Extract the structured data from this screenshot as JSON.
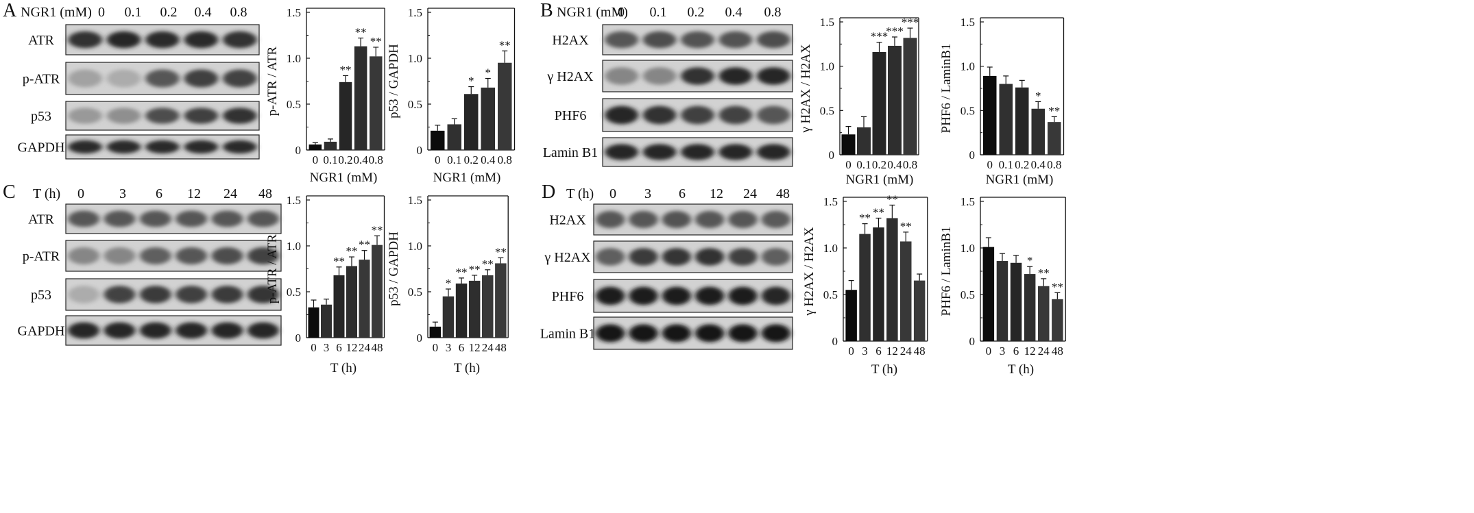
{
  "panels": [
    {
      "letter": "A",
      "condition_label": "NGR1 (mM)",
      "lane_labels": [
        "0",
        "0.1",
        "0.2",
        "0.4",
        "0.8"
      ],
      "blots": [
        {
          "label": "ATR",
          "intensity": [
            0.8,
            0.85,
            0.82,
            0.82,
            0.8
          ]
        },
        {
          "label": "p-ATR",
          "intensity": [
            0.2,
            0.15,
            0.6,
            0.72,
            0.7
          ]
        },
        {
          "label": "p53",
          "intensity": [
            0.25,
            0.3,
            0.65,
            0.72,
            0.8
          ]
        },
        {
          "label": "GAPDH",
          "intensity": [
            0.82,
            0.82,
            0.82,
            0.82,
            0.82
          ]
        }
      ]
    },
    {
      "letter": "B",
      "condition_label": "NGR1 (mM)",
      "lane_labels": [
        "0",
        "0.1",
        "0.2",
        "0.4",
        "0.8"
      ],
      "blots": [
        {
          "label": "H2AX",
          "intensity": [
            0.6,
            0.65,
            0.62,
            0.62,
            0.65
          ]
        },
        {
          "label": "γ H2AX",
          "intensity": [
            0.35,
            0.35,
            0.8,
            0.85,
            0.85
          ]
        },
        {
          "label": "PHF6",
          "intensity": [
            0.85,
            0.8,
            0.72,
            0.7,
            0.6
          ]
        },
        {
          "label": "Lamin B1",
          "intensity": [
            0.85,
            0.85,
            0.85,
            0.85,
            0.85
          ]
        }
      ]
    },
    {
      "letter": "C",
      "condition_label": "T (h)",
      "lane_labels": [
        "0",
        "3",
        "6",
        "12",
        "24",
        "48"
      ],
      "blots": [
        {
          "label": "ATR",
          "intensity": [
            0.6,
            0.6,
            0.6,
            0.6,
            0.6,
            0.6
          ]
        },
        {
          "label": "p-ATR",
          "intensity": [
            0.35,
            0.35,
            0.55,
            0.6,
            0.65,
            0.7
          ]
        },
        {
          "label": "p53",
          "intensity": [
            0.15,
            0.7,
            0.75,
            0.72,
            0.75,
            0.78
          ]
        },
        {
          "label": "GAPDH",
          "intensity": [
            0.85,
            0.85,
            0.85,
            0.85,
            0.85,
            0.85
          ]
        }
      ]
    },
    {
      "letter": "D",
      "condition_label": "T (h)",
      "lane_labels": [
        "0",
        "3",
        "6",
        "12",
        "24",
        "48"
      ],
      "blots": [
        {
          "label": "H2AX",
          "intensity": [
            0.6,
            0.6,
            0.62,
            0.6,
            0.6,
            0.58
          ]
        },
        {
          "label": "γ H2AX",
          "intensity": [
            0.55,
            0.75,
            0.78,
            0.8,
            0.72,
            0.55
          ]
        },
        {
          "label": "PHF6",
          "intensity": [
            0.9,
            0.9,
            0.9,
            0.9,
            0.9,
            0.85
          ]
        },
        {
          "label": "Lamin B1",
          "intensity": [
            0.92,
            0.92,
            0.92,
            0.92,
            0.92,
            0.92
          ]
        }
      ]
    }
  ],
  "chart_data": [
    {
      "type": "bar",
      "panel": "A",
      "categories": [
        "0",
        "0.1",
        "0.2",
        "0.4",
        "0.8"
      ],
      "values": [
        0.06,
        0.09,
        0.74,
        1.13,
        1.02
      ],
      "errors": [
        0.02,
        0.03,
        0.07,
        0.09,
        0.1
      ],
      "significance": [
        "",
        "",
        "**",
        "**",
        "**"
      ],
      "ylabel": "p-ATR / ATR",
      "xlabel": "NGR1 (mM)",
      "ylim": [
        0,
        1.5
      ],
      "yticks": [
        "0",
        "0.5",
        "1.0",
        "1.5"
      ]
    },
    {
      "type": "bar",
      "panel": "A",
      "categories": [
        "0",
        "0.1",
        "0.2",
        "0.4",
        "0.8"
      ],
      "values": [
        0.21,
        0.28,
        0.61,
        0.68,
        0.95
      ],
      "errors": [
        0.06,
        0.06,
        0.08,
        0.1,
        0.13
      ],
      "significance": [
        "",
        "",
        "*",
        "*",
        "**"
      ],
      "ylabel": "p53 / GAPDH",
      "xlabel": "NGR1 (mM)",
      "ylim": [
        0,
        1.5
      ],
      "yticks": [
        "0",
        "0.5",
        "1.0",
        "1.5"
      ]
    },
    {
      "type": "bar",
      "panel": "B",
      "categories": [
        "0",
        "0.1",
        "0.2",
        "0.4",
        "0.8"
      ],
      "values": [
        0.23,
        0.31,
        1.16,
        1.23,
        1.32
      ],
      "errors": [
        0.09,
        0.12,
        0.11,
        0.1,
        0.11
      ],
      "significance": [
        "",
        "",
        "***",
        "***",
        "***"
      ],
      "ylabel": "γ H2AX / H2AX",
      "xlabel": "NGR1 (mM)",
      "ylim": [
        0,
        1.5
      ],
      "yticks": [
        "0",
        "0.5",
        "1.0",
        "1.5"
      ]
    },
    {
      "type": "bar",
      "panel": "B",
      "categories": [
        "0",
        "0.1",
        "0.2",
        "0.4",
        "0.8"
      ],
      "values": [
        0.89,
        0.8,
        0.76,
        0.52,
        0.37
      ],
      "errors": [
        0.1,
        0.09,
        0.08,
        0.08,
        0.06
      ],
      "significance": [
        "",
        "",
        "",
        "*",
        "**"
      ],
      "ylabel": "PHF6 / LaminB1",
      "xlabel": "NGR1 (mM)",
      "ylim": [
        0,
        1.5
      ],
      "yticks": [
        "0",
        "0.5",
        "1.0",
        "1.5"
      ]
    },
    {
      "type": "bar",
      "panel": "C",
      "categories": [
        "0",
        "3",
        "6",
        "12",
        "24",
        "48"
      ],
      "values": [
        0.33,
        0.36,
        0.68,
        0.78,
        0.85,
        1.01
      ],
      "errors": [
        0.08,
        0.06,
        0.09,
        0.1,
        0.1,
        0.1
      ],
      "significance": [
        "",
        "",
        "**",
        "**",
        "**",
        "**"
      ],
      "ylabel": "p-ATR / ATR",
      "xlabel": "T (h)",
      "ylim": [
        0,
        1.5
      ],
      "yticks": [
        "0",
        "0.5",
        "1.0",
        "1.5"
      ]
    },
    {
      "type": "bar",
      "panel": "C",
      "categories": [
        "0",
        "3",
        "6",
        "12",
        "24",
        "48"
      ],
      "values": [
        0.12,
        0.45,
        0.59,
        0.62,
        0.68,
        0.81
      ],
      "errors": [
        0.05,
        0.08,
        0.06,
        0.06,
        0.06,
        0.06
      ],
      "significance": [
        "",
        "*",
        "**",
        "**",
        "**",
        "**"
      ],
      "ylabel": "p53 / GAPDH",
      "xlabel": "T (h)",
      "ylim": [
        0,
        1.5
      ],
      "yticks": [
        "0",
        "0.5",
        "1.0",
        "1.5"
      ]
    },
    {
      "type": "bar",
      "panel": "D",
      "categories": [
        "0",
        "3",
        "6",
        "12",
        "24",
        "48"
      ],
      "values": [
        0.55,
        1.15,
        1.22,
        1.32,
        1.07,
        0.65
      ],
      "errors": [
        0.1,
        0.11,
        0.1,
        0.14,
        0.1,
        0.07
      ],
      "significance": [
        "",
        "**",
        "**",
        "**",
        "**",
        ""
      ],
      "ylabel": "γ H2AX / H2AX",
      "xlabel": "T (h)",
      "ylim": [
        0,
        1.5
      ],
      "yticks": [
        "0",
        "0.5",
        "1.0",
        "1.5"
      ]
    },
    {
      "type": "bar",
      "panel": "D",
      "categories": [
        "0",
        "3",
        "6",
        "12",
        "24",
        "48"
      ],
      "values": [
        1.01,
        0.86,
        0.84,
        0.72,
        0.59,
        0.45
      ],
      "errors": [
        0.1,
        0.08,
        0.08,
        0.08,
        0.08,
        0.07
      ],
      "significance": [
        "",
        "",
        "",
        "*",
        "**",
        "**"
      ],
      "ylabel": "PHF6 / LaminB1",
      "xlabel": "T (h)",
      "ylim": [
        0,
        1.5
      ],
      "yticks": [
        "0",
        "0.5",
        "1.0",
        "1.5"
      ]
    }
  ]
}
